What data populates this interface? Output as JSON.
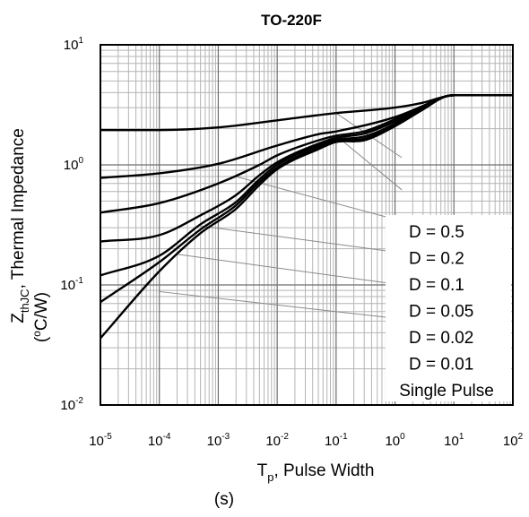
{
  "chart_data": {
    "type": "line",
    "title": "TO-220F",
    "x_scale": "log",
    "y_scale": "log",
    "xlim": [
      1e-05,
      100
    ],
    "ylim": [
      0.01,
      10
    ],
    "grid": true,
    "xlabel": {
      "main": "T",
      "sub": "p",
      "rest": ", Pulse Width",
      "unit": "(s)"
    },
    "ylabel": {
      "main": "Z",
      "sub": "thJC",
      "rest": ", Thermal Impedance",
      "unit_pre": "(",
      "unit_sup": "o",
      "unit_rest": "C/W)"
    },
    "x_ticks": [
      {
        "base": "10",
        "exp": "-5",
        "value": 1e-05
      },
      {
        "base": "10",
        "exp": "-4",
        "value": 0.0001
      },
      {
        "base": "10",
        "exp": "-3",
        "value": 0.001
      },
      {
        "base": "10",
        "exp": "-2",
        "value": 0.01
      },
      {
        "base": "10",
        "exp": "-1",
        "value": 0.1
      },
      {
        "base": "10",
        "exp": "0",
        "value": 1
      },
      {
        "base": "10",
        "exp": "1",
        "value": 10
      },
      {
        "base": "10",
        "exp": "2",
        "value": 100
      }
    ],
    "y_ticks": [
      {
        "base": "10",
        "exp": "1",
        "value": 10
      },
      {
        "base": "10",
        "exp": "0",
        "value": 1
      },
      {
        "base": "10",
        "exp": "-1",
        "value": 0.1
      },
      {
        "base": "10",
        "exp": "-2",
        "value": 0.01
      }
    ],
    "legend_position": "bottom-right",
    "legend": [
      "D = 0.5",
      "D = 0.2",
      "D = 0.1",
      "D = 0.05",
      "D = 0.02",
      "D = 0.01",
      "Single Pulse"
    ],
    "series": [
      {
        "name": "D = 0.5",
        "points": [
          [
            1e-05,
            1.95
          ],
          [
            0.0001,
            1.95
          ],
          [
            0.001,
            2.05
          ],
          [
            0.01,
            2.35
          ],
          [
            0.1,
            2.7
          ],
          [
            1,
            3.0
          ],
          [
            3,
            3.3
          ],
          [
            7,
            3.7
          ],
          [
            10,
            3.8
          ],
          [
            100,
            3.8
          ]
        ]
      },
      {
        "name": "D = 0.2",
        "points": [
          [
            1e-05,
            0.78
          ],
          [
            0.0001,
            0.85
          ],
          [
            0.001,
            1.02
          ],
          [
            0.01,
            1.45
          ],
          [
            0.05,
            1.8
          ],
          [
            0.1,
            1.9
          ],
          [
            1,
            2.5
          ],
          [
            3,
            3.1
          ],
          [
            7,
            3.7
          ],
          [
            10,
            3.8
          ],
          [
            100,
            3.8
          ]
        ]
      },
      {
        "name": "D = 0.1",
        "points": [
          [
            1e-05,
            0.4
          ],
          [
            0.0001,
            0.48
          ],
          [
            0.001,
            0.7
          ],
          [
            0.005,
            1.0
          ],
          [
            0.01,
            1.2
          ],
          [
            0.05,
            1.6
          ],
          [
            0.1,
            1.75
          ],
          [
            0.3,
            1.9
          ],
          [
            1,
            2.4
          ],
          [
            3,
            3.1
          ],
          [
            7,
            3.7
          ],
          [
            10,
            3.8
          ],
          [
            100,
            3.8
          ]
        ]
      },
      {
        "name": "D = 0.05",
        "points": [
          [
            1e-05,
            0.23
          ],
          [
            0.0001,
            0.26
          ],
          [
            0.0005,
            0.38
          ],
          [
            0.002,
            0.56
          ],
          [
            0.005,
            0.82
          ],
          [
            0.01,
            1.05
          ],
          [
            0.05,
            1.5
          ],
          [
            0.1,
            1.68
          ],
          [
            0.3,
            1.82
          ],
          [
            1,
            2.3
          ],
          [
            3,
            3.0
          ],
          [
            7,
            3.7
          ],
          [
            10,
            3.8
          ],
          [
            100,
            3.8
          ]
        ]
      },
      {
        "name": "D = 0.02",
        "points": [
          [
            1e-05,
            0.12
          ],
          [
            0.0001,
            0.175
          ],
          [
            0.0005,
            0.32
          ],
          [
            0.002,
            0.49
          ],
          [
            0.005,
            0.76
          ],
          [
            0.01,
            1.0
          ],
          [
            0.05,
            1.45
          ],
          [
            0.1,
            1.62
          ],
          [
            0.3,
            1.72
          ],
          [
            1,
            2.2
          ],
          [
            3,
            3.0
          ],
          [
            7,
            3.7
          ],
          [
            10,
            3.8
          ],
          [
            100,
            3.8
          ]
        ]
      },
      {
        "name": "D = 0.01",
        "points": [
          [
            1e-05,
            0.072
          ],
          [
            0.0001,
            0.155
          ],
          [
            0.0005,
            0.29
          ],
          [
            0.002,
            0.46
          ],
          [
            0.005,
            0.72
          ],
          [
            0.01,
            0.95
          ],
          [
            0.05,
            1.4
          ],
          [
            0.1,
            1.58
          ],
          [
            0.3,
            1.65
          ],
          [
            1,
            2.15
          ],
          [
            3,
            2.95
          ],
          [
            7,
            3.7
          ],
          [
            10,
            3.8
          ],
          [
            100,
            3.8
          ]
        ]
      },
      {
        "name": "Single Pulse",
        "points": [
          [
            1e-05,
            0.036
          ],
          [
            0.0001,
            0.13
          ],
          [
            0.0005,
            0.27
          ],
          [
            0.002,
            0.43
          ],
          [
            0.005,
            0.68
          ],
          [
            0.01,
            0.92
          ],
          [
            0.05,
            1.35
          ],
          [
            0.1,
            1.55
          ],
          [
            0.3,
            1.6
          ],
          [
            1,
            2.1
          ],
          [
            3,
            2.9
          ],
          [
            7,
            3.7
          ],
          [
            10,
            3.8
          ],
          [
            100,
            3.8
          ]
        ]
      }
    ],
    "leader_lines": [
      {
        "from": [
          0.1,
          2.7
        ],
        "to": [
          1.3,
          1.15
        ]
      },
      {
        "from": [
          0.1,
          1.75
        ],
        "to": [
          1.3,
          0.62
        ]
      },
      {
        "from": [
          0.002,
          0.8
        ],
        "to": [
          1.3,
          0.34
        ]
      },
      {
        "from": [
          0.0005,
          0.31
        ],
        "to": [
          1.3,
          0.185
        ]
      },
      {
        "from": [
          0.0002,
          0.18
        ],
        "to": [
          1.3,
          0.1
        ]
      },
      {
        "from": [
          0.0001,
          0.088
        ],
        "to": [
          1.3,
          0.052
        ]
      }
    ]
  }
}
